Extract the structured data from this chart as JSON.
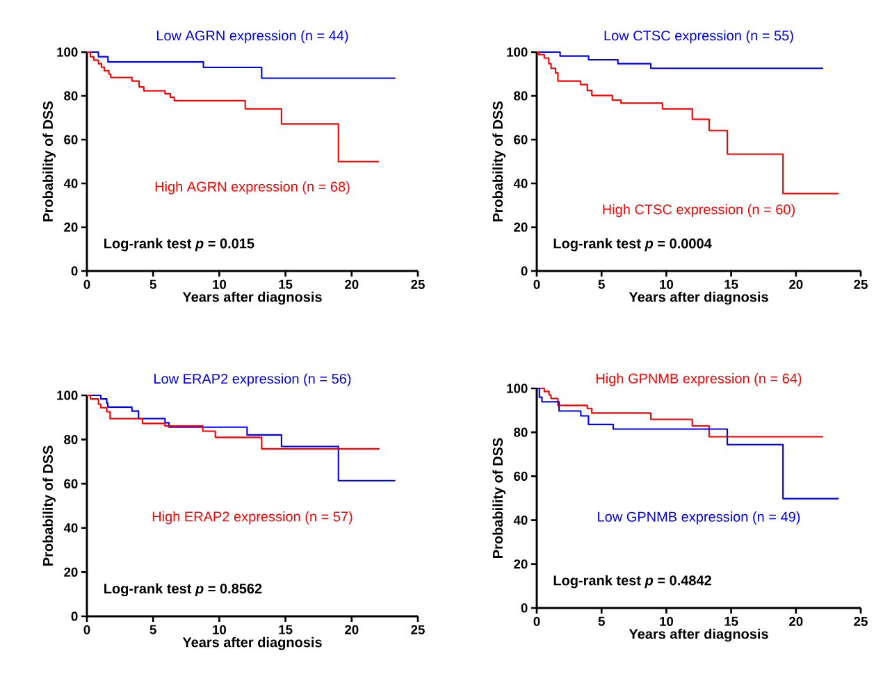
{
  "chart_data": [
    {
      "type": "step",
      "xlabel": "Years after diagnosis",
      "ylabel": "Probability of DSS",
      "xlim": [
        0,
        25
      ],
      "ylim": [
        0,
        100
      ],
      "xticks": [
        0,
        5,
        10,
        15,
        20,
        25
      ],
      "yticks": [
        0,
        20,
        40,
        60,
        80,
        100
      ],
      "legend": false,
      "grid": false,
      "annotations": [
        "Log-rank test *p* = 0.015"
      ],
      "series": [
        {
          "name": "Low AGRN expression (n = 44)",
          "color": "#0000ff",
          "x": [
            0,
            0.87,
            1.59,
            8.8,
            13.2,
            23.3
          ],
          "values": [
            100,
            97.9,
            95.5,
            93.0,
            88.1,
            88.1
          ]
        },
        {
          "name": "High AGRN expression (n = 68)",
          "color": "#ff0000",
          "x": [
            0,
            0.26,
            0.52,
            0.87,
            1.1,
            1.31,
            1.66,
            1.8,
            3.4,
            3.94,
            4.3,
            5.9,
            6.3,
            6.6,
            11.96,
            14.7,
            19.0,
            22.06
          ],
          "values": [
            100,
            97.9,
            96.3,
            94.7,
            93.1,
            91.5,
            90.0,
            88.4,
            86.8,
            84.1,
            82.3,
            81.0,
            79.4,
            77.8,
            74.1,
            67.2,
            50.0,
            50.0
          ]
        }
      ]
    },
    {
      "type": "step",
      "xlabel": "Years after diagnosis",
      "ylabel": "Probability of DSS",
      "xlim": [
        0,
        25
      ],
      "ylim": [
        0,
        100
      ],
      "xticks": [
        0,
        5,
        10,
        15,
        20,
        25
      ],
      "yticks": [
        0,
        20,
        40,
        60,
        80,
        100
      ],
      "legend": false,
      "grid": false,
      "annotations": [
        "Log-rank test *p* = 0.0004"
      ],
      "series": [
        {
          "name": "Low CTSC expression (n = 55)",
          "color": "#0000ff",
          "x": [
            0,
            1.8,
            4.0,
            6.26,
            8.8,
            22.1
          ],
          "values": [
            100,
            98.2,
            96.5,
            94.7,
            92.6,
            92.6
          ]
        },
        {
          "name": "High CTSC expression (n = 60)",
          "color": "#ff0000",
          "x": [
            0,
            0.16,
            0.58,
            0.93,
            1.1,
            1.45,
            1.63,
            3.38,
            3.9,
            4.25,
            5.83,
            6.5,
            9.7,
            12.0,
            13.3,
            14.7,
            19.0,
            23.3
          ],
          "values": [
            100,
            98.9,
            97.3,
            94.7,
            92.6,
            90.5,
            86.8,
            85.2,
            82.5,
            80.2,
            78.1,
            76.7,
            74.1,
            69.3,
            64.2,
            53.4,
            35.4,
            35.4
          ]
        }
      ]
    },
    {
      "type": "step",
      "xlabel": "Years after diagnosis",
      "ylabel": "Probability of DSS",
      "xlim": [
        0,
        25
      ],
      "ylim": [
        0,
        100
      ],
      "xticks": [
        0,
        5,
        10,
        15,
        20,
        25
      ],
      "yticks": [
        0,
        20,
        40,
        60,
        80,
        100
      ],
      "legend": false,
      "grid": false,
      "annotations": [
        "Log-rank test *p* = 0.8562"
      ],
      "series": [
        {
          "name": "Low ERAP2 expression (n = 56)",
          "color": "#0000ff",
          "x": [
            0,
            1.05,
            1.5,
            1.58,
            3.4,
            3.9,
            5.9,
            6.2,
            12.1,
            14.7,
            19.0,
            23.3
          ],
          "values": [
            100,
            98.4,
            96.5,
            94.7,
            92.9,
            89.5,
            87.6,
            85.6,
            82.1,
            76.9,
            61.4,
            61.4
          ]
        },
        {
          "name": "High ERAP2 expression (n = 57)",
          "color": "#ff0000",
          "x": [
            0,
            0.26,
            0.87,
            1.05,
            1.5,
            1.75,
            4.2,
            5.9,
            8.75,
            9.7,
            13.2,
            22.1
          ],
          "values": [
            100,
            98.4,
            96.0,
            94.4,
            92.6,
            89.5,
            87.3,
            86.1,
            83.8,
            81.0,
            75.8,
            75.8
          ]
        }
      ]
    },
    {
      "type": "step",
      "xlabel": "Years after diagnosis",
      "ylabel": "Probability of DSS",
      "xlim": [
        0,
        25
      ],
      "ylim": [
        0,
        100
      ],
      "xticks": [
        0,
        5,
        10,
        15,
        20,
        25
      ],
      "yticks": [
        0,
        20,
        40,
        60,
        80,
        100
      ],
      "legend": false,
      "grid": false,
      "annotations": [
        "Log-rank test *p* = 0.4842"
      ],
      "series": [
        {
          "name": "High GPNMB expression (n = 64)",
          "color": "#ff0000",
          "x": [
            0,
            0.58,
            0.95,
            1.1,
            1.63,
            3.9,
            4.25,
            8.8,
            12.0,
            13.3,
            22.1
          ],
          "values": [
            100,
            98.6,
            97.0,
            95.4,
            92.3,
            90.9,
            88.8,
            85.9,
            82.9,
            78.0,
            78.0
          ]
        },
        {
          "name": "Low GPNMB expression (n = 49)",
          "color": "#0000ff",
          "x": [
            0,
            0.2,
            0.4,
            1.72,
            3.4,
            3.99,
            5.9,
            14.7,
            19.0,
            23.3
          ],
          "values": [
            100,
            96.0,
            93.9,
            89.7,
            87.5,
            83.6,
            81.5,
            74.4,
            49.8,
            49.8
          ]
        }
      ]
    }
  ]
}
